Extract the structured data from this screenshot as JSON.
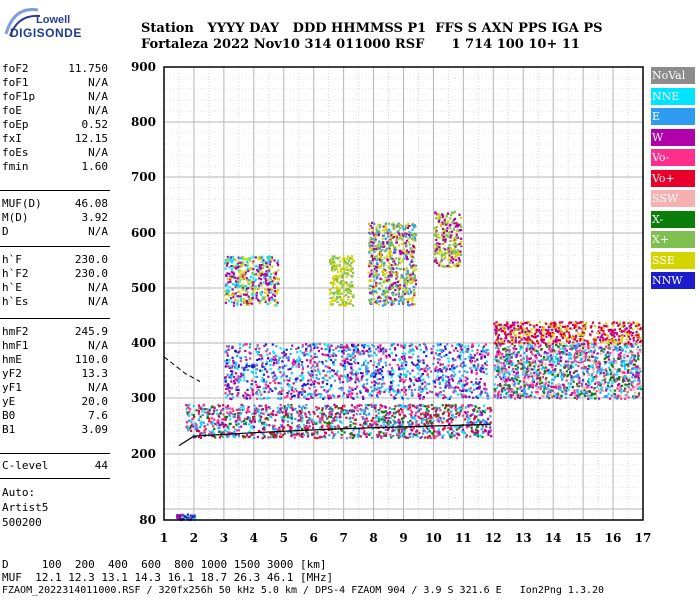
{
  "logo": {
    "line1": "Lowell",
    "line2": "DIGISONDE"
  },
  "header": {
    "row1": "Station   YYYY DAY   DDD HHMMSS P1  FFS S AXN PPS IGA PS",
    "row2": "Fortaleza 2022 Nov10 314 011000 RSF      1 714 100 10+ 11"
  },
  "params": [
    {
      "k": "foF2",
      "v": "11.750"
    },
    {
      "k": "foF1",
      "v": "N/A"
    },
    {
      "k": "foF1p",
      "v": "N/A"
    },
    {
      "k": "foE",
      "v": "N/A"
    },
    {
      "k": "foEp",
      "v": "0.52"
    },
    {
      "k": "fxI",
      "v": "12.15"
    },
    {
      "k": "foEs",
      "v": "N/A"
    },
    {
      "k": "fmin",
      "v": "1.60"
    },
    {
      "k": "MUF(D)",
      "v": "46.08"
    },
    {
      "k": "M(D)",
      "v": "3.92"
    },
    {
      "k": "D",
      "v": "N/A"
    },
    {
      "k": "h`F",
      "v": "230.0"
    },
    {
      "k": "h`F2",
      "v": "230.0"
    },
    {
      "k": "h`E",
      "v": "N/A"
    },
    {
      "k": "h`Es",
      "v": "N/A"
    },
    {
      "k": "hmF2",
      "v": "245.9"
    },
    {
      "k": "hmF1",
      "v": "N/A"
    },
    {
      "k": "hmE",
      "v": "110.0"
    },
    {
      "k": "yF2",
      "v": "13.3"
    },
    {
      "k": "yF1",
      "v": "N/A"
    },
    {
      "k": "yE",
      "v": "20.0"
    },
    {
      "k": "B0",
      "v": "7.6"
    },
    {
      "k": "B1",
      "v": "3.09"
    },
    {
      "k": "C-level",
      "v": "44"
    }
  ],
  "auto": {
    "l1": "Auto:",
    "l2": "Artist5",
    "l3": "500200"
  },
  "footer": {
    "d_line": "D     100  200  400  600  800 1000 1500 3000 [km]",
    "muf_line": "MUF  12.1 12.3 13.1 14.3 16.1 18.7 26.3 46.1 [MHz]",
    "file_line": "FZAOM_2022314011000.RSF / 320fx256h 50 kHz 5.0 km / DPS-4 FZAOM 904 / 3.9 S 321.6 E   Ion2Png 1.3.20"
  },
  "legend": [
    {
      "label": "NoVal",
      "color": "#8c8c8c"
    },
    {
      "label": "NNE",
      "color": "#00e5ff"
    },
    {
      "label": "E",
      "color": "#2d9cf0"
    },
    {
      "label": "W",
      "color": "#b000a8"
    },
    {
      "label": "Vo-",
      "color": "#ff2e8a"
    },
    {
      "label": "Vo+",
      "color": "#e8002a"
    },
    {
      "label": "SSW",
      "color": "#f7b0b0"
    },
    {
      "label": "X-",
      "color": "#0a7d0a"
    },
    {
      "label": "X+",
      "color": "#7fbf4f"
    },
    {
      "label": "SSE",
      "color": "#d4d400"
    },
    {
      "label": "NNW",
      "color": "#1c1ccc"
    }
  ],
  "chart_data": {
    "type": "scatter",
    "xlim": [
      1,
      17
    ],
    "ylim": [
      80,
      900
    ],
    "xticks": [
      "1",
      "2",
      "3",
      "4",
      "5",
      "6",
      "7",
      "8",
      "9",
      "10",
      "11",
      "12",
      "13",
      "14",
      "15",
      "16",
      "17"
    ],
    "yticks": [
      "80",
      "200",
      "300",
      "400",
      "500",
      "600",
      "700",
      "800",
      "900"
    ],
    "trace_lower": [
      [
        1.5,
        215
      ],
      [
        2,
        232
      ],
      [
        4,
        238
      ],
      [
        6,
        243
      ],
      [
        8,
        247
      ],
      [
        10,
        250
      ],
      [
        11.9,
        253
      ]
    ],
    "profile_dashed": [
      [
        1,
        375
      ],
      [
        1.7,
        345
      ],
      [
        2.2,
        330
      ]
    ],
    "clusters": [
      {
        "name": "F-trace-main",
        "x": [
          1.7,
          11.9
        ],
        "y": [
          230,
          290
        ],
        "colors": [
          "Vo+",
          "Vo-",
          "NNE",
          "X-",
          "W",
          "E"
        ]
      },
      {
        "name": "F-upper",
        "x": [
          12,
          16.9
        ],
        "y": [
          300,
          400
        ],
        "colors": [
          "W",
          "E",
          "NNE",
          "Vo-",
          "X-",
          "SSW"
        ]
      },
      {
        "name": "F2-high",
        "x": [
          12,
          16.9
        ],
        "y": [
          400,
          440
        ],
        "colors": [
          "W",
          "SSE",
          "Vo+"
        ]
      },
      {
        "name": "spread-mid",
        "x": [
          3,
          11.8
        ],
        "y": [
          300,
          400
        ],
        "colors": [
          "W",
          "NNE",
          "NNW",
          "Vo-",
          "E"
        ]
      },
      {
        "name": "spread-high-a",
        "x": [
          3,
          4.8
        ],
        "y": [
          470,
          560
        ],
        "colors": [
          "SSE",
          "W",
          "NNE"
        ]
      },
      {
        "name": "spread-high-b",
        "x": [
          6.5,
          7.3
        ],
        "y": [
          470,
          560
        ],
        "colors": [
          "SSE",
          "X+"
        ]
      },
      {
        "name": "spread-high-c",
        "x": [
          7.8,
          9.4
        ],
        "y": [
          470,
          620
        ],
        "colors": [
          "SSE",
          "W",
          "X+",
          "E"
        ]
      },
      {
        "name": "spread-high-d",
        "x": [
          10,
          10.9
        ],
        "y": [
          540,
          640
        ],
        "colors": [
          "SSE",
          "X+",
          "W"
        ]
      },
      {
        "name": "low-echo",
        "x": [
          1.4,
          2.0
        ],
        "y": [
          82,
          92
        ],
        "colors": [
          "NNW",
          "NNE",
          "W"
        ]
      }
    ]
  }
}
